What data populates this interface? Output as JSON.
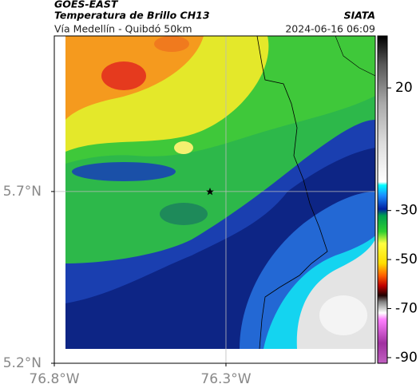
{
  "header": {
    "title": "GOES-EAST",
    "subtitle": "Temperatura de Brillo CH13",
    "source": "SIATA",
    "location": "Vía Medellín - Quibdó 50km",
    "timestamp": "2024-06-16 06:09"
  },
  "map": {
    "xlim": [
      -76.8,
      -75.865
    ],
    "ylim": [
      5.2,
      6.153
    ],
    "xticks": [
      {
        "value": -76.8,
        "label": "76.8°W"
      },
      {
        "value": -76.3,
        "label": "76.3°W"
      }
    ],
    "yticks": [
      {
        "value": 5.2,
        "label": "5.2°N"
      },
      {
        "value": 5.7,
        "label": "5.7°N"
      }
    ],
    "grid": true
  },
  "colorbar": {
    "lim": [
      -92.3,
      41.2
    ],
    "ticks": [
      20,
      -30,
      -50,
      -70,
      -90
    ]
  }
}
